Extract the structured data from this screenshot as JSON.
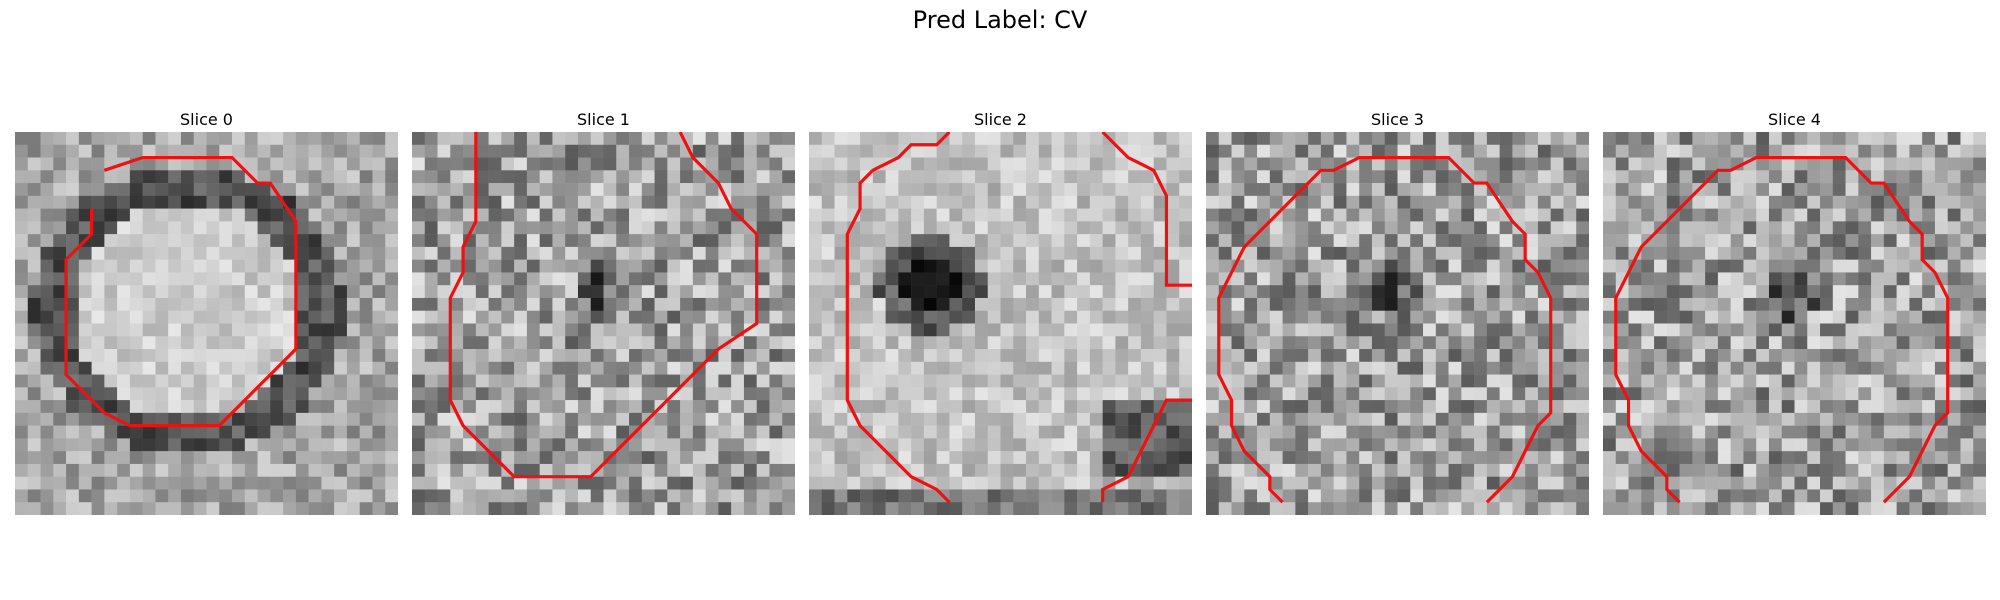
{
  "figure": {
    "title": "Pred Label: CV"
  },
  "colors": {
    "contour": "#ee1111"
  },
  "panels": [
    {
      "title": "Slice 0",
      "pattern": "cell-with-ring"
    },
    {
      "title": "Slice 1",
      "pattern": "noisy-textured"
    },
    {
      "title": "Slice 2",
      "pattern": "dark-spot-upper-left"
    },
    {
      "title": "Slice 3",
      "pattern": "noisy-textured"
    },
    {
      "title": "Slice 4",
      "pattern": "noisy-textured"
    }
  ]
}
